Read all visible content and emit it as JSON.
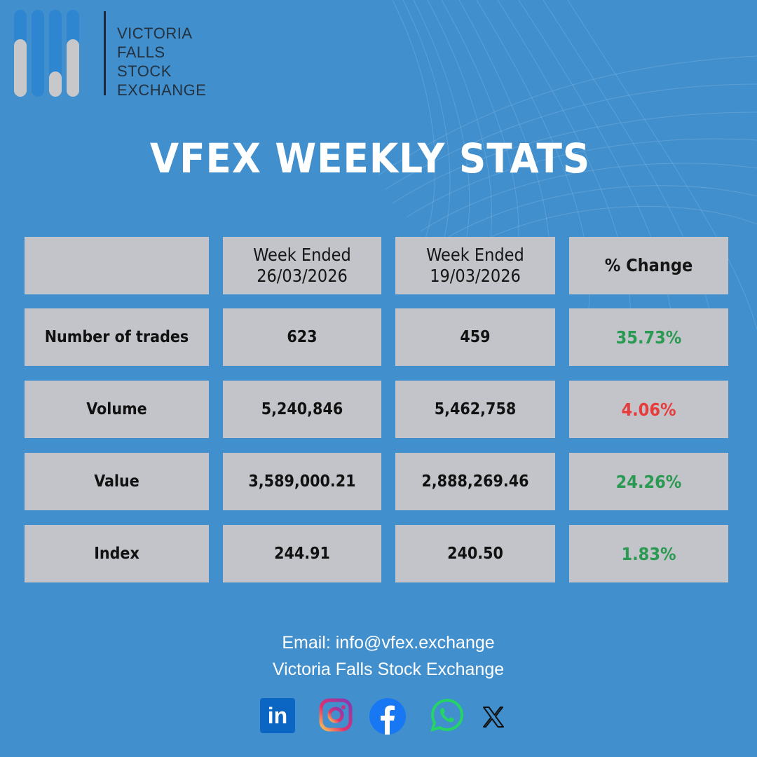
{
  "brand": {
    "logo_lines": [
      "VICTORIA",
      "FALLS",
      "STOCK",
      "EXCHANGE"
    ]
  },
  "title": "VFEX WEEKLY STATS",
  "table": {
    "headers": [
      "",
      "Week Ended",
      "Week Ended",
      "% Change"
    ],
    "header_dates": [
      "",
      "26/03/2026",
      "19/03/2026",
      ""
    ],
    "rows": [
      {
        "label": "Number of trades",
        "current": "623",
        "previous": "459",
        "change": "35.73%",
        "direction": "up"
      },
      {
        "label": "Volume",
        "current": "5,240,846",
        "previous": "5,462,758",
        "change": "4.06%",
        "direction": "down"
      },
      {
        "label": "Value",
        "current": "3,589,000.21",
        "previous": "2,888,269.46",
        "change": "24.26%",
        "direction": "up"
      },
      {
        "label": "Index",
        "current": "244.91",
        "previous": "240.50",
        "change": "1.83%",
        "direction": "up"
      }
    ]
  },
  "footer": {
    "email": "Email: info@vfex.exchange",
    "org": "Victoria Falls Stock Exchange"
  },
  "social": {
    "icons": [
      "linkedin-icon",
      "instagram-icon",
      "facebook-icon",
      "whatsapp-icon",
      "x-icon"
    ],
    "linkedin_text": "in"
  },
  "colors": {
    "background": "#418fcd",
    "cell": "#c2c4c9",
    "positive": "#2a9a52",
    "negative": "#e83b3b"
  }
}
